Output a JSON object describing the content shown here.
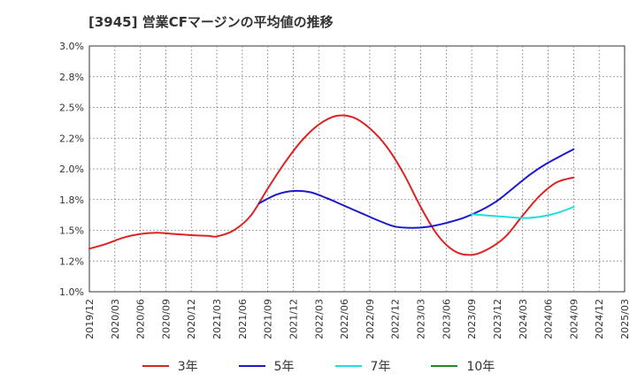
{
  "title": "[3945]  営業CFマージンの平均値の推移",
  "chart_data": {
    "type": "line",
    "title": "[3945]  営業CFマージンの平均値の推移",
    "xlabel": "",
    "ylabel": "",
    "ylim": [
      1.0,
      3.0
    ],
    "y_ticks": [
      "1.0%",
      "1.2%",
      "1.5%",
      "1.8%",
      "2.0%",
      "2.2%",
      "2.5%",
      "2.8%",
      "3.0%"
    ],
    "x_ticks": [
      "2019/12",
      "2020/03",
      "2020/06",
      "2020/09",
      "2020/12",
      "2021/03",
      "2021/06",
      "2021/09",
      "2021/12",
      "2022/03",
      "2022/06",
      "2022/09",
      "2022/12",
      "2023/03",
      "2023/06",
      "2023/09",
      "2023/12",
      "2024/03",
      "2024/06",
      "2024/09",
      "2024/12",
      "2025/03"
    ],
    "grid": true,
    "legend_position": "bottom",
    "series": [
      {
        "name": "3年",
        "color": "#dd2222",
        "points": [
          [
            "2019/12",
            1.35
          ],
          [
            "2020/02",
            1.39
          ],
          [
            "2020/04",
            1.44
          ],
          [
            "2020/06",
            1.47
          ],
          [
            "2020/08",
            1.48
          ],
          [
            "2020/10",
            1.47
          ],
          [
            "2020/12",
            1.46
          ],
          [
            "2021/02",
            1.455
          ],
          [
            "2021/03",
            1.45
          ],
          [
            "2021/05",
            1.5
          ],
          [
            "2021/07",
            1.62
          ],
          [
            "2021/09",
            1.84
          ],
          [
            "2021/11",
            2.05
          ],
          [
            "2022/01",
            2.23
          ],
          [
            "2022/03",
            2.36
          ],
          [
            "2022/05",
            2.43
          ],
          [
            "2022/07",
            2.42
          ],
          [
            "2022/09",
            2.33
          ],
          [
            "2022/11",
            2.18
          ],
          [
            "2023/01",
            1.96
          ],
          [
            "2023/03",
            1.69
          ],
          [
            "2023/05",
            1.46
          ],
          [
            "2023/07",
            1.33
          ],
          [
            "2023/09",
            1.3
          ],
          [
            "2023/11",
            1.35
          ],
          [
            "2024/01",
            1.45
          ],
          [
            "2024/03",
            1.62
          ],
          [
            "2024/05",
            1.78
          ],
          [
            "2024/07",
            1.89
          ],
          [
            "2024/09",
            1.93
          ]
        ]
      },
      {
        "name": "5年",
        "color": "#1a1acc",
        "points": [
          [
            "2021/08",
            1.72
          ],
          [
            "2021/10",
            1.79
          ],
          [
            "2021/12",
            1.82
          ],
          [
            "2022/02",
            1.81
          ],
          [
            "2022/04",
            1.76
          ],
          [
            "2022/06",
            1.7
          ],
          [
            "2022/08",
            1.64
          ],
          [
            "2022/10",
            1.58
          ],
          [
            "2022/12",
            1.53
          ],
          [
            "2023/02",
            1.52
          ],
          [
            "2023/04",
            1.53
          ],
          [
            "2023/06",
            1.56
          ],
          [
            "2023/08",
            1.6
          ],
          [
            "2023/10",
            1.66
          ],
          [
            "2023/12",
            1.74
          ],
          [
            "2024/02",
            1.85
          ],
          [
            "2024/04",
            1.96
          ],
          [
            "2024/06",
            2.05
          ],
          [
            "2024/09",
            2.16
          ]
        ]
      },
      {
        "name": "7年",
        "color": "#22dddd",
        "points": [
          [
            "2023/09",
            1.63
          ],
          [
            "2023/11",
            1.62
          ],
          [
            "2024/01",
            1.61
          ],
          [
            "2024/03",
            1.6
          ],
          [
            "2024/05",
            1.61
          ],
          [
            "2024/07",
            1.64
          ],
          [
            "2024/09",
            1.69
          ]
        ]
      },
      {
        "name": "10年",
        "color": "#228822",
        "points": []
      }
    ]
  }
}
